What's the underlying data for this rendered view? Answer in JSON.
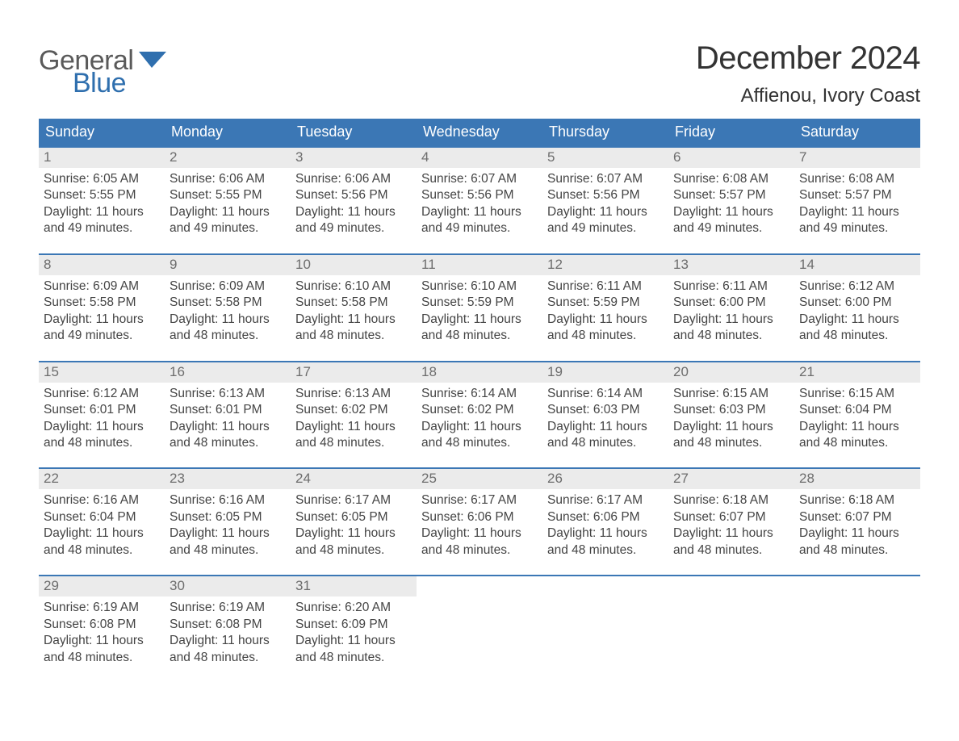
{
  "brand": {
    "part1": "General",
    "part2": "Blue",
    "color_gray": "#5a5a5a",
    "color_blue": "#2f6fae"
  },
  "title": "December 2024",
  "location": "Affienou, Ivory Coast",
  "colors": {
    "header_bg": "#3b77b5",
    "header_text": "#ffffff",
    "daynum_bg": "#ebebeb",
    "daynum_text": "#6d6d6d",
    "body_text": "#444444",
    "rule": "#3b77b5"
  },
  "weekdays": [
    "Sunday",
    "Monday",
    "Tuesday",
    "Wednesday",
    "Thursday",
    "Friday",
    "Saturday"
  ],
  "weeks": [
    [
      {
        "n": "1",
        "sunrise": "Sunrise: 6:05 AM",
        "sunset": "Sunset: 5:55 PM",
        "day1": "Daylight: 11 hours",
        "day2": "and 49 minutes."
      },
      {
        "n": "2",
        "sunrise": "Sunrise: 6:06 AM",
        "sunset": "Sunset: 5:55 PM",
        "day1": "Daylight: 11 hours",
        "day2": "and 49 minutes."
      },
      {
        "n": "3",
        "sunrise": "Sunrise: 6:06 AM",
        "sunset": "Sunset: 5:56 PM",
        "day1": "Daylight: 11 hours",
        "day2": "and 49 minutes."
      },
      {
        "n": "4",
        "sunrise": "Sunrise: 6:07 AM",
        "sunset": "Sunset: 5:56 PM",
        "day1": "Daylight: 11 hours",
        "day2": "and 49 minutes."
      },
      {
        "n": "5",
        "sunrise": "Sunrise: 6:07 AM",
        "sunset": "Sunset: 5:56 PM",
        "day1": "Daylight: 11 hours",
        "day2": "and 49 minutes."
      },
      {
        "n": "6",
        "sunrise": "Sunrise: 6:08 AM",
        "sunset": "Sunset: 5:57 PM",
        "day1": "Daylight: 11 hours",
        "day2": "and 49 minutes."
      },
      {
        "n": "7",
        "sunrise": "Sunrise: 6:08 AM",
        "sunset": "Sunset: 5:57 PM",
        "day1": "Daylight: 11 hours",
        "day2": "and 49 minutes."
      }
    ],
    [
      {
        "n": "8",
        "sunrise": "Sunrise: 6:09 AM",
        "sunset": "Sunset: 5:58 PM",
        "day1": "Daylight: 11 hours",
        "day2": "and 49 minutes."
      },
      {
        "n": "9",
        "sunrise": "Sunrise: 6:09 AM",
        "sunset": "Sunset: 5:58 PM",
        "day1": "Daylight: 11 hours",
        "day2": "and 48 minutes."
      },
      {
        "n": "10",
        "sunrise": "Sunrise: 6:10 AM",
        "sunset": "Sunset: 5:58 PM",
        "day1": "Daylight: 11 hours",
        "day2": "and 48 minutes."
      },
      {
        "n": "11",
        "sunrise": "Sunrise: 6:10 AM",
        "sunset": "Sunset: 5:59 PM",
        "day1": "Daylight: 11 hours",
        "day2": "and 48 minutes."
      },
      {
        "n": "12",
        "sunrise": "Sunrise: 6:11 AM",
        "sunset": "Sunset: 5:59 PM",
        "day1": "Daylight: 11 hours",
        "day2": "and 48 minutes."
      },
      {
        "n": "13",
        "sunrise": "Sunrise: 6:11 AM",
        "sunset": "Sunset: 6:00 PM",
        "day1": "Daylight: 11 hours",
        "day2": "and 48 minutes."
      },
      {
        "n": "14",
        "sunrise": "Sunrise: 6:12 AM",
        "sunset": "Sunset: 6:00 PM",
        "day1": "Daylight: 11 hours",
        "day2": "and 48 minutes."
      }
    ],
    [
      {
        "n": "15",
        "sunrise": "Sunrise: 6:12 AM",
        "sunset": "Sunset: 6:01 PM",
        "day1": "Daylight: 11 hours",
        "day2": "and 48 minutes."
      },
      {
        "n": "16",
        "sunrise": "Sunrise: 6:13 AM",
        "sunset": "Sunset: 6:01 PM",
        "day1": "Daylight: 11 hours",
        "day2": "and 48 minutes."
      },
      {
        "n": "17",
        "sunrise": "Sunrise: 6:13 AM",
        "sunset": "Sunset: 6:02 PM",
        "day1": "Daylight: 11 hours",
        "day2": "and 48 minutes."
      },
      {
        "n": "18",
        "sunrise": "Sunrise: 6:14 AM",
        "sunset": "Sunset: 6:02 PM",
        "day1": "Daylight: 11 hours",
        "day2": "and 48 minutes."
      },
      {
        "n": "19",
        "sunrise": "Sunrise: 6:14 AM",
        "sunset": "Sunset: 6:03 PM",
        "day1": "Daylight: 11 hours",
        "day2": "and 48 minutes."
      },
      {
        "n": "20",
        "sunrise": "Sunrise: 6:15 AM",
        "sunset": "Sunset: 6:03 PM",
        "day1": "Daylight: 11 hours",
        "day2": "and 48 minutes."
      },
      {
        "n": "21",
        "sunrise": "Sunrise: 6:15 AM",
        "sunset": "Sunset: 6:04 PM",
        "day1": "Daylight: 11 hours",
        "day2": "and 48 minutes."
      }
    ],
    [
      {
        "n": "22",
        "sunrise": "Sunrise: 6:16 AM",
        "sunset": "Sunset: 6:04 PM",
        "day1": "Daylight: 11 hours",
        "day2": "and 48 minutes."
      },
      {
        "n": "23",
        "sunrise": "Sunrise: 6:16 AM",
        "sunset": "Sunset: 6:05 PM",
        "day1": "Daylight: 11 hours",
        "day2": "and 48 minutes."
      },
      {
        "n": "24",
        "sunrise": "Sunrise: 6:17 AM",
        "sunset": "Sunset: 6:05 PM",
        "day1": "Daylight: 11 hours",
        "day2": "and 48 minutes."
      },
      {
        "n": "25",
        "sunrise": "Sunrise: 6:17 AM",
        "sunset": "Sunset: 6:06 PM",
        "day1": "Daylight: 11 hours",
        "day2": "and 48 minutes."
      },
      {
        "n": "26",
        "sunrise": "Sunrise: 6:17 AM",
        "sunset": "Sunset: 6:06 PM",
        "day1": "Daylight: 11 hours",
        "day2": "and 48 minutes."
      },
      {
        "n": "27",
        "sunrise": "Sunrise: 6:18 AM",
        "sunset": "Sunset: 6:07 PM",
        "day1": "Daylight: 11 hours",
        "day2": "and 48 minutes."
      },
      {
        "n": "28",
        "sunrise": "Sunrise: 6:18 AM",
        "sunset": "Sunset: 6:07 PM",
        "day1": "Daylight: 11 hours",
        "day2": "and 48 minutes."
      }
    ],
    [
      {
        "n": "29",
        "sunrise": "Sunrise: 6:19 AM",
        "sunset": "Sunset: 6:08 PM",
        "day1": "Daylight: 11 hours",
        "day2": "and 48 minutes."
      },
      {
        "n": "30",
        "sunrise": "Sunrise: 6:19 AM",
        "sunset": "Sunset: 6:08 PM",
        "day1": "Daylight: 11 hours",
        "day2": "and 48 minutes."
      },
      {
        "n": "31",
        "sunrise": "Sunrise: 6:20 AM",
        "sunset": "Sunset: 6:09 PM",
        "day1": "Daylight: 11 hours",
        "day2": "and 48 minutes."
      },
      {
        "empty": true
      },
      {
        "empty": true
      },
      {
        "empty": true
      },
      {
        "empty": true
      }
    ]
  ]
}
